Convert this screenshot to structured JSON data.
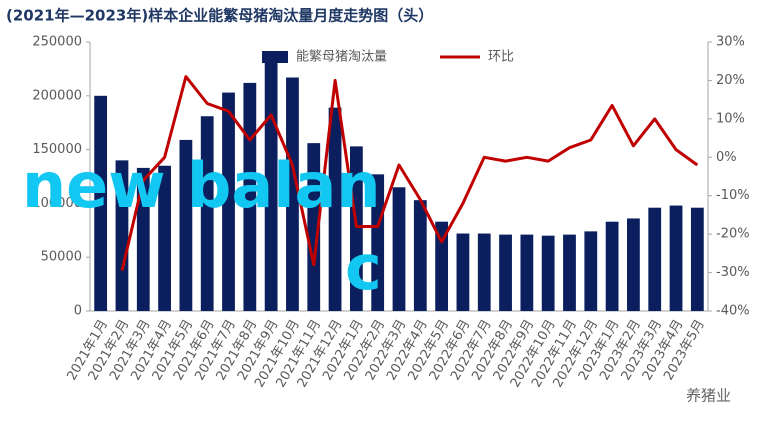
{
  "chart_data": {
    "type": "bar_line",
    "title": "(2021年—2023年)样本企业能繁母猪淘汰量月度走势图（头）",
    "categories": [
      "2021年1月",
      "2021年2月",
      "2021年3月",
      "2021年4月",
      "2021年5月",
      "2021年6月",
      "2021年7月",
      "2021年8月",
      "2021年9月",
      "2021年10月",
      "2021年11月",
      "2021年12月",
      "2022年1月",
      "2022年2月",
      "2022年3月",
      "2022年4月",
      "2022年5月",
      "2022年6月",
      "2022年7月",
      "2022年8月",
      "2022年9月",
      "2022年10月",
      "2022年11月",
      "2022年12月",
      "2023年1月",
      "2023年2月",
      "2023年3月",
      "2023年4月",
      "2023年5月"
    ],
    "series": [
      {
        "name": "能繁母猪淘汰量",
        "kind": "bar",
        "color": "#0b1f5e",
        "values": [
          200000,
          140000,
          133000,
          135000,
          159000,
          181000,
          203000,
          212000,
          233000,
          217000,
          156000,
          189000,
          153000,
          127000,
          115000,
          103000,
          83000,
          72000,
          72000,
          71000,
          71000,
          70000,
          71000,
          74000,
          83000,
          86000,
          96000,
          98000,
          96000
        ]
      },
      {
        "name": "环比",
        "kind": "line",
        "axis": "y2",
        "color": "#c00000",
        "values": [
          null,
          -29.5,
          -6,
          0,
          21,
          14,
          12,
          4.5,
          11,
          -2,
          -28,
          20,
          -18,
          -18,
          -2,
          -11,
          -22,
          -12,
          0,
          -1,
          0,
          -1,
          2.5,
          4.5,
          13.5,
          3,
          10,
          2,
          -2
        ]
      }
    ],
    "ylim": [
      0,
      250000
    ],
    "yticks": [
      0,
      50000,
      100000,
      150000,
      200000,
      250000
    ],
    "y2lim": [
      -40,
      30
    ],
    "y2ticks": [
      {
        "value": -40,
        "label": "-40%"
      },
      {
        "value": -30,
        "label": "-30%"
      },
      {
        "value": -20,
        "label": "-20%"
      },
      {
        "value": -10,
        "label": "-10%"
      },
      {
        "value": 0,
        "label": "0%"
      },
      {
        "value": 10,
        "label": "10%"
      },
      {
        "value": 20,
        "label": "20%"
      },
      {
        "value": 30,
        "label": "30%"
      }
    ],
    "legend": "top",
    "annotations": [
      "new balan",
      "c",
      "养猪业"
    ]
  }
}
